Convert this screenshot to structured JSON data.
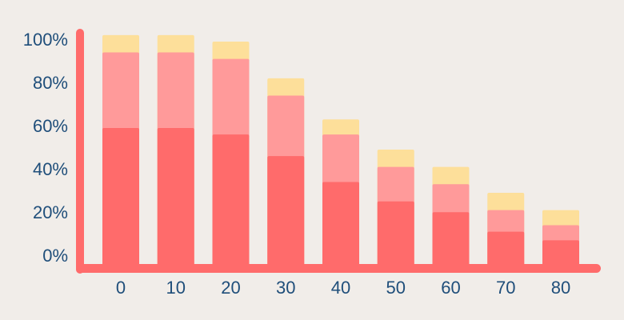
{
  "chart_data": {
    "type": "bar",
    "stacked": true,
    "categories": [
      "0",
      "10",
      "20",
      "30",
      "40",
      "50",
      "60",
      "70",
      "80"
    ],
    "y_ticks": [
      "0%",
      "20%",
      "40%",
      "60%",
      "80%",
      "100%"
    ],
    "ylim": [
      0,
      100
    ],
    "grid": false,
    "series": [
      {
        "values": [
          60,
          60,
          57,
          47,
          35,
          26,
          21,
          12,
          8
        ]
      },
      {
        "values": [
          35,
          35,
          35,
          28,
          22,
          16,
          13,
          10,
          7
        ]
      },
      {
        "values": [
          8,
          8,
          8,
          8,
          7,
          8,
          8,
          8,
          7
        ]
      }
    ],
    "colors": {
      "series": [
        "#ff6b6b",
        "#ff9a9a",
        "#fddf9a"
      ],
      "axis": "#ff6b6b",
      "text": "#1f4e7a"
    }
  }
}
